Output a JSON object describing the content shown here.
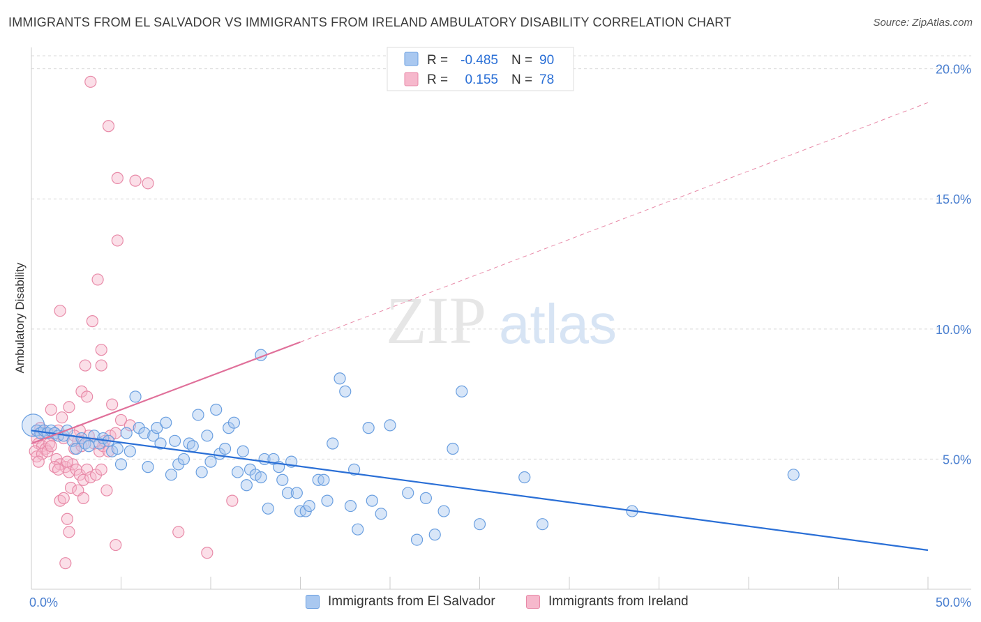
{
  "title": "IMMIGRANTS FROM EL SALVADOR VS IMMIGRANTS FROM IRELAND AMBULATORY DISABILITY CORRELATION CHART",
  "source": "Source: ZipAtlas.com",
  "watermark": {
    "zip": "ZIP",
    "atlas": "atlas"
  },
  "colors": {
    "blue_fill": "#a9c8f0",
    "blue_stroke": "#6a9fe0",
    "blue_line": "#2a6fd6",
    "pink_fill": "#f6b8cc",
    "pink_stroke": "#e88aa8",
    "pink_line": "#e0709a",
    "tick_text": "#4a7fd0",
    "grid": "#d8d8d8"
  },
  "legend": {
    "rows": [
      {
        "r_label": "R =",
        "r_value": "-0.485",
        "n_label": "N =",
        "n_value": "90"
      },
      {
        "r_label": "R =",
        "r_value": "0.155",
        "n_label": "N =",
        "n_value": "78"
      }
    ]
  },
  "bottom_legend": {
    "items": [
      "Immigrants from El Salvador",
      "Immigrants from Ireland"
    ]
  },
  "chart_data": {
    "type": "scatter",
    "title": "IMMIGRANTS FROM EL SALVADOR VS IMMIGRANTS FROM IRELAND AMBULATORY DISABILITY CORRELATION CHART",
    "xlabel": "",
    "ylabel": "Ambulatory Disability",
    "xlim": [
      0,
      50
    ],
    "ylim": [
      0,
      20.5
    ],
    "x_tick_labels": [
      "0.0%",
      "50.0%"
    ],
    "y_ticks": [
      5,
      10,
      15,
      20
    ],
    "y_tick_labels": [
      "5.0%",
      "10.0%",
      "15.0%",
      "20.0%"
    ],
    "grid": "horizontal dashed",
    "legend_placement": "top-center",
    "series": [
      {
        "name": "Immigrants from El Salvador",
        "r": -0.485,
        "n": 90,
        "trend": {
          "x": [
            0,
            50
          ],
          "y": [
            6.1,
            1.5
          ],
          "style": "solid"
        },
        "points": [
          [
            0.1,
            6.3
          ],
          [
            0.3,
            6.1
          ],
          [
            0.5,
            6.0
          ],
          [
            0.7,
            6.1
          ],
          [
            0.9,
            6.0
          ],
          [
            1.1,
            6.1
          ],
          [
            1.3,
            6.0
          ],
          [
            1.5,
            5.9
          ],
          [
            1.8,
            5.9
          ],
          [
            2.0,
            6.1
          ],
          [
            2.3,
            5.7
          ],
          [
            2.5,
            5.4
          ],
          [
            2.8,
            5.8
          ],
          [
            3.0,
            5.6
          ],
          [
            3.2,
            5.5
          ],
          [
            3.5,
            5.9
          ],
          [
            3.8,
            5.6
          ],
          [
            4.0,
            5.8
          ],
          [
            4.3,
            5.7
          ],
          [
            4.5,
            5.3
          ],
          [
            4.8,
            5.4
          ],
          [
            5.0,
            4.8
          ],
          [
            5.3,
            6.0
          ],
          [
            5.5,
            5.3
          ],
          [
            5.8,
            7.4
          ],
          [
            6.0,
            6.2
          ],
          [
            6.3,
            6.0
          ],
          [
            6.5,
            4.7
          ],
          [
            6.8,
            5.9
          ],
          [
            7.0,
            6.2
          ],
          [
            7.2,
            5.6
          ],
          [
            7.5,
            6.4
          ],
          [
            7.8,
            4.4
          ],
          [
            8.0,
            5.7
          ],
          [
            8.2,
            4.8
          ],
          [
            8.5,
            5.0
          ],
          [
            8.8,
            5.6
          ],
          [
            9.0,
            5.5
          ],
          [
            9.3,
            6.7
          ],
          [
            9.5,
            4.5
          ],
          [
            9.8,
            5.9
          ],
          [
            10.0,
            4.9
          ],
          [
            10.3,
            6.9
          ],
          [
            10.5,
            5.2
          ],
          [
            10.8,
            5.4
          ],
          [
            11.0,
            6.2
          ],
          [
            11.3,
            6.4
          ],
          [
            11.5,
            4.5
          ],
          [
            11.8,
            5.3
          ],
          [
            12.0,
            4.0
          ],
          [
            12.2,
            4.6
          ],
          [
            12.5,
            4.4
          ],
          [
            12.8,
            4.3
          ],
          [
            13.0,
            5.0
          ],
          [
            13.2,
            3.1
          ],
          [
            13.5,
            5.0
          ],
          [
            13.8,
            4.7
          ],
          [
            14.0,
            4.2
          ],
          [
            14.3,
            3.7
          ],
          [
            14.5,
            4.9
          ],
          [
            14.8,
            3.7
          ],
          [
            15.0,
            3.0
          ],
          [
            15.3,
            3.0
          ],
          [
            15.5,
            3.2
          ],
          [
            16.0,
            4.2
          ],
          [
            16.3,
            4.2
          ],
          [
            16.5,
            3.4
          ],
          [
            16.8,
            5.6
          ],
          [
            17.2,
            8.1
          ],
          [
            17.5,
            7.6
          ],
          [
            17.8,
            3.2
          ],
          [
            18.0,
            4.6
          ],
          [
            18.2,
            2.3
          ],
          [
            18.8,
            6.2
          ],
          [
            19.0,
            3.4
          ],
          [
            19.5,
            2.9
          ],
          [
            20.0,
            6.3
          ],
          [
            21.0,
            3.7
          ],
          [
            21.5,
            1.9
          ],
          [
            22.0,
            3.5
          ],
          [
            22.5,
            2.1
          ],
          [
            23.0,
            3.0
          ],
          [
            23.5,
            5.4
          ],
          [
            25.0,
            2.5
          ],
          [
            27.5,
            4.3
          ],
          [
            28.5,
            2.5
          ],
          [
            33.5,
            3.0
          ],
          [
            42.5,
            4.4
          ],
          [
            12.8,
            9.0
          ],
          [
            24.0,
            7.6
          ]
        ]
      },
      {
        "name": "Immigrants from Ireland",
        "r": 0.155,
        "n": 78,
        "trend": {
          "x": [
            0,
            15
          ],
          "y": [
            5.6,
            9.5
          ],
          "style": "solid",
          "extended_to": [
            50,
            18.7
          ],
          "extended_style": "dashed"
        },
        "points": [
          [
            3.3,
            19.5
          ],
          [
            4.3,
            17.8
          ],
          [
            4.8,
            15.8
          ],
          [
            5.8,
            15.7
          ],
          [
            6.5,
            15.6
          ],
          [
            4.8,
            13.4
          ],
          [
            3.7,
            11.9
          ],
          [
            1.6,
            10.7
          ],
          [
            3.4,
            10.3
          ],
          [
            3.9,
            9.2
          ],
          [
            3.9,
            8.6
          ],
          [
            3.0,
            8.6
          ],
          [
            2.8,
            7.6
          ],
          [
            3.1,
            7.4
          ],
          [
            4.5,
            7.1
          ],
          [
            2.1,
            7.0
          ],
          [
            1.1,
            6.9
          ],
          [
            1.7,
            6.6
          ],
          [
            0.5,
            6.2
          ],
          [
            0.7,
            6.0
          ],
          [
            0.9,
            6.0
          ],
          [
            1.2,
            5.9
          ],
          [
            0.3,
            5.8
          ],
          [
            0.4,
            5.6
          ],
          [
            0.6,
            5.5
          ],
          [
            0.8,
            5.4
          ],
          [
            1.0,
            5.6
          ],
          [
            0.2,
            5.3
          ],
          [
            0.3,
            5.1
          ],
          [
            0.6,
            5.2
          ],
          [
            1.4,
            5.0
          ],
          [
            1.6,
            4.8
          ],
          [
            1.9,
            4.7
          ],
          [
            2.1,
            4.5
          ],
          [
            2.3,
            4.8
          ],
          [
            2.5,
            4.6
          ],
          [
            2.7,
            4.4
          ],
          [
            2.9,
            4.2
          ],
          [
            3.1,
            4.6
          ],
          [
            3.3,
            4.3
          ],
          [
            3.6,
            4.4
          ],
          [
            3.9,
            4.6
          ],
          [
            4.2,
            3.8
          ],
          [
            1.3,
            4.7
          ],
          [
            1.5,
            4.6
          ],
          [
            2.0,
            4.9
          ],
          [
            2.4,
            5.4
          ],
          [
            2.6,
            5.7
          ],
          [
            2.8,
            5.5
          ],
          [
            3.2,
            5.9
          ],
          [
            3.5,
            5.6
          ],
          [
            3.8,
            5.3
          ],
          [
            4.1,
            5.7
          ],
          [
            4.4,
            5.9
          ],
          [
            4.7,
            6.0
          ],
          [
            5.0,
            6.5
          ],
          [
            2.2,
            3.9
          ],
          [
            2.6,
            3.8
          ],
          [
            2.9,
            3.5
          ],
          [
            1.6,
            3.4
          ],
          [
            1.8,
            3.5
          ],
          [
            2.0,
            2.7
          ],
          [
            2.1,
            2.2
          ],
          [
            1.9,
            1.0
          ],
          [
            4.7,
            1.7
          ],
          [
            8.2,
            2.2
          ],
          [
            9.8,
            1.4
          ],
          [
            11.2,
            3.4
          ],
          [
            1.5,
            6.1
          ],
          [
            1.8,
            5.8
          ],
          [
            0.9,
            5.3
          ],
          [
            1.1,
            5.5
          ],
          [
            4.0,
            5.5
          ],
          [
            4.3,
            5.3
          ],
          [
            2.7,
            6.1
          ],
          [
            5.5,
            6.3
          ],
          [
            0.4,
            4.9
          ],
          [
            2.4,
            5.9
          ]
        ]
      }
    ]
  }
}
